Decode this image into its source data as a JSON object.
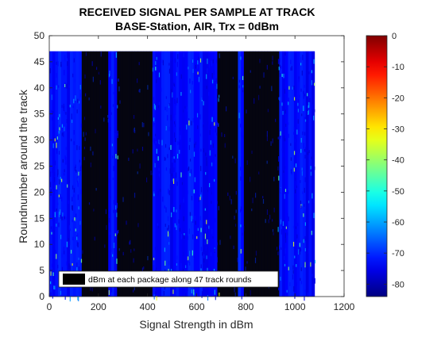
{
  "chart_data": {
    "type": "heatmap",
    "title": "RECEIVED SIGNAL PER SAMPLE AT TRACK",
    "subtitle": "BASE-Station, AIR, Trx = 0dBm",
    "xlabel": "Signal Strength in dBm",
    "ylabel": "Roundnumber around the track",
    "xlim": [
      0,
      1200
    ],
    "ylim": [
      0,
      50
    ],
    "x_ticks": [
      0,
      200,
      400,
      600,
      800,
      1000,
      1200
    ],
    "y_ticks": [
      0,
      5,
      10,
      15,
      20,
      25,
      30,
      35,
      40,
      45,
      50
    ],
    "data_extent": {
      "x": [
        0,
        1080
      ],
      "y": [
        0,
        47
      ]
    },
    "rounds": 47,
    "samples_per_round": 1080,
    "colorbar": {
      "colormap": "jet",
      "clim": [
        -84,
        0
      ],
      "ticks": [
        0,
        -10,
        -20,
        -30,
        -40,
        -50,
        -60,
        -70,
        -80
      ]
    },
    "dark_bands": [
      {
        "x": [
          130,
          240
        ],
        "level": -84
      },
      {
        "x": [
          280,
          420
        ],
        "level": -84
      },
      {
        "x": [
          690,
          770
        ],
        "level": -84
      },
      {
        "x": [
          790,
          930
        ],
        "level": -84
      }
    ],
    "background_level": -72,
    "legend": {
      "location": "bottom-left",
      "entries": [
        "dBm at each package along 47 track rounds"
      ]
    },
    "grid": false
  },
  "colors": {
    "axis": "#262626",
    "text": "#262626",
    "title": "#000000"
  }
}
